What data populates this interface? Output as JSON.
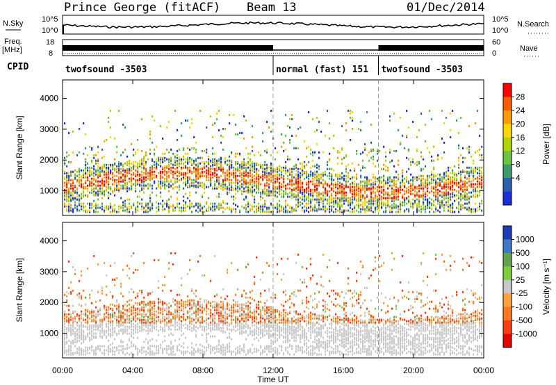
{
  "header": {
    "station": "Prince George (fitACF)",
    "beam": "Beam 13",
    "date": "01/Dec/2014"
  },
  "strip": {
    "nsky_label": "N.Sky",
    "nsearch_label": "N.Search",
    "freq_label_1": "Freq.",
    "freq_label_2": "[MHz]",
    "nave_label": "Nave",
    "cpid_label": "CPID",
    "noise_ticks": [
      "10^5",
      "10^0"
    ],
    "noise_ticks_right": [
      "10^5",
      "10^0"
    ],
    "freq_ticks": [
      "18",
      "8"
    ],
    "nave_ticks": [
      "60",
      "0"
    ]
  },
  "cpid_segments": [
    {
      "name": "twofsound -3503",
      "start_hour": 0,
      "end_hour": 12
    },
    {
      "name": "normal (fast) 151",
      "start_hour": 12,
      "end_hour": 18
    },
    {
      "name": "twofsound -3503",
      "start_hour": 18,
      "end_hour": 24
    }
  ],
  "chart_data": [
    {
      "type": "heatmap",
      "title": "Power",
      "xlabel": "Time UT",
      "ylabel": "Slant Range [km]",
      "xlim_hours": [
        0,
        24
      ],
      "ylim": [
        200,
        4600
      ],
      "ytick_labels": [
        "4000",
        "3000",
        "2000",
        "1000"
      ],
      "xtick_labels": [
        "00:00",
        "04:00",
        "08:00",
        "12:00",
        "16:00",
        "20:00",
        "00:00"
      ],
      "colorbar": {
        "label": "Power [dB]",
        "ticks": [
          "28",
          "24",
          "20",
          "16",
          "12",
          "8",
          "4"
        ],
        "colors": [
          "#ff0000",
          "#ff5a00",
          "#ff9a00",
          "#ffd700",
          "#b4d400",
          "#6cc43c",
          "#3c9c6c",
          "#2a5fae",
          "#1e2ed8"
        ]
      },
      "dashed_x_hours": [
        12,
        18
      ]
    },
    {
      "type": "heatmap",
      "title": "Velocity",
      "xlabel": "Time UT",
      "ylabel": "Slant Range [km]",
      "xlim_hours": [
        0,
        24
      ],
      "ylim": [
        200,
        4600
      ],
      "ytick_labels": [
        "4000",
        "3000",
        "2000",
        "1000"
      ],
      "xtick_labels": [
        "00:00",
        "04:00",
        "08:00",
        "12:00",
        "16:00",
        "20:00",
        "00:00"
      ],
      "colorbar": {
        "label": "Velocity [m s⁻¹]",
        "ticks": [
          "1000",
          "500",
          "100",
          "25",
          "-25",
          "-100",
          "-500",
          "-1000"
        ],
        "colors": [
          "#1e3cb4",
          "#3c78c8",
          "#64a050",
          "#7ccc3c",
          "#c8c8c8",
          "#ffa040",
          "#ff7820",
          "#ff3c10",
          "#e60000"
        ]
      },
      "dashed_x_hours": [
        12,
        18
      ]
    }
  ],
  "time_axis_label": "Time UT"
}
